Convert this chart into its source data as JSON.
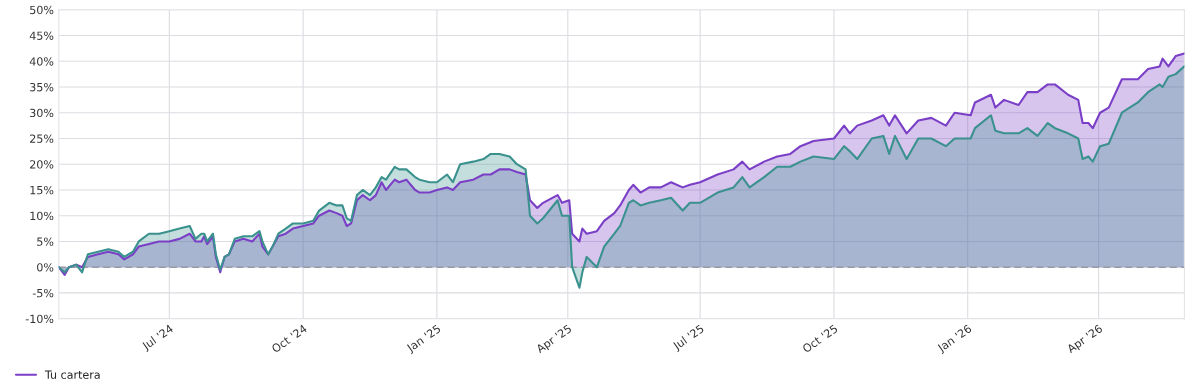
{
  "chart_data": {
    "type": "area",
    "xlim": [
      "2024-04-16",
      "2026-05-30"
    ],
    "ylim": [
      -10,
      50
    ],
    "xticks": [
      {
        "value": "2024-07-01",
        "label": "Jul '24"
      },
      {
        "value": "2024-10-01",
        "label": "Oct '24"
      },
      {
        "value": "2025-01-01",
        "label": "Jan '25"
      },
      {
        "value": "2025-04-01",
        "label": "Apr '25"
      },
      {
        "value": "2025-07-01",
        "label": "Jul '25"
      },
      {
        "value": "2025-10-01",
        "label": "Oct '25"
      },
      {
        "value": "2026-01-01",
        "label": "Jan '26"
      },
      {
        "value": "2026-04-01",
        "label": "Apr '26"
      }
    ],
    "yticks": [
      {
        "value": -10,
        "label": "-10%"
      },
      {
        "value": -5,
        "label": "-5%"
      },
      {
        "value": 0,
        "label": "0%"
      },
      {
        "value": 5,
        "label": "5%"
      },
      {
        "value": 10,
        "label": "10%"
      },
      {
        "value": 15,
        "label": "15%"
      },
      {
        "value": 20,
        "label": "20%"
      },
      {
        "value": 25,
        "label": "25%"
      },
      {
        "value": 30,
        "label": "30%"
      },
      {
        "value": 35,
        "label": "35%"
      },
      {
        "value": 40,
        "label": "40%"
      },
      {
        "value": 45,
        "label": "45%"
      },
      {
        "value": 50,
        "label": "50%"
      }
    ],
    "grid": true,
    "legend": "bottom left",
    "line_style": "solid",
    "ref_lines": [
      {
        "axis": "y",
        "value": 0,
        "color": "#9a9aa6",
        "line_style": "dashed"
      }
    ],
    "series": [
      {
        "name": "Tu cartera",
        "color": "#7a3fc6",
        "x": [
          "2024-04-16",
          "2024-04-20",
          "2024-04-23",
          "2024-04-28",
          "2024-05-02",
          "2024-05-06",
          "2024-05-13",
          "2024-05-20",
          "2024-05-27",
          "2024-05-31",
          "2024-06-06",
          "2024-06-10",
          "2024-06-17",
          "2024-06-24",
          "2024-07-01",
          "2024-07-08",
          "2024-07-15",
          "2024-07-19",
          "2024-07-23",
          "2024-07-25",
          "2024-07-27",
          "2024-07-31",
          "2024-08-02",
          "2024-08-05",
          "2024-08-08",
          "2024-08-11",
          "2024-08-15",
          "2024-08-21",
          "2024-08-27",
          "2024-09-01",
          "2024-09-03",
          "2024-09-07",
          "2024-09-10",
          "2024-09-14",
          "2024-09-19",
          "2024-09-24",
          "2024-10-01",
          "2024-10-08",
          "2024-10-12",
          "2024-10-19",
          "2024-10-24",
          "2024-10-28",
          "2024-10-31",
          "2024-11-03",
          "2024-11-07",
          "2024-11-11",
          "2024-11-16",
          "2024-11-20",
          "2024-11-24",
          "2024-11-27",
          "2024-12-03",
          "2024-12-06",
          "2024-12-11",
          "2024-12-17",
          "2024-12-20",
          "2024-12-27",
          "2025-01-01",
          "2025-01-08",
          "2025-01-12",
          "2025-01-17",
          "2025-01-26",
          "2025-02-02",
          "2025-02-07",
          "2025-02-13",
          "2025-02-20",
          "2025-02-25",
          "2025-03-03",
          "2025-03-06",
          "2025-03-11",
          "2025-03-15",
          "2025-03-25",
          "2025-03-28",
          "2025-04-02",
          "2025-04-04",
          "2025-04-09",
          "2025-04-11",
          "2025-04-14",
          "2025-04-21",
          "2025-04-26",
          "2025-05-03",
          "2025-05-07",
          "2025-05-13",
          "2025-05-16",
          "2025-05-21",
          "2025-05-27",
          "2025-06-04",
          "2025-06-11",
          "2025-06-19",
          "2025-06-24",
          "2025-07-01",
          "2025-07-13",
          "2025-07-24",
          "2025-07-30",
          "2025-08-04",
          "2025-08-14",
          "2025-08-23",
          "2025-09-01",
          "2025-09-08",
          "2025-09-17",
          "2025-10-01",
          "2025-10-08",
          "2025-10-12",
          "2025-10-17",
          "2025-10-27",
          "2025-11-04",
          "2025-11-08",
          "2025-11-12",
          "2025-11-20",
          "2025-11-28",
          "2025-12-07",
          "2025-12-17",
          "2025-12-23",
          "2026-01-03",
          "2026-01-06",
          "2026-01-17",
          "2026-01-20",
          "2026-01-26",
          "2026-02-05",
          "2026-02-11",
          "2026-02-18",
          "2026-02-25",
          "2026-03-02",
          "2026-03-11",
          "2026-03-18",
          "2026-03-21",
          "2026-03-25",
          "2026-03-28",
          "2026-04-02",
          "2026-04-08",
          "2026-04-17",
          "2026-04-28",
          "2026-05-05",
          "2026-05-13",
          "2026-05-15",
          "2026-05-19",
          "2026-05-24",
          "2026-05-30"
        ],
        "values": [
          0,
          -1.5,
          0,
          0.5,
          0,
          2,
          2.5,
          3,
          2.5,
          1.5,
          2.5,
          4,
          4.5,
          5,
          5,
          5.5,
          6.5,
          5,
          5,
          6,
          4.5,
          6,
          2,
          -1,
          2,
          2.5,
          5,
          5.5,
          5,
          6.5,
          4,
          2.5,
          4,
          6,
          6.5,
          7.5,
          8,
          8.5,
          10,
          11,
          10.5,
          10,
          8,
          8.5,
          13,
          14,
          13,
          14,
          16.5,
          15,
          17,
          16.5,
          17,
          15,
          14.5,
          14.5,
          15,
          15.5,
          15,
          16.5,
          17,
          18,
          18,
          19,
          19,
          18.5,
          18,
          13,
          11.5,
          12.5,
          14,
          12.5,
          13,
          6.5,
          5,
          7.5,
          6.5,
          7,
          9,
          10.5,
          12,
          15,
          16,
          14.5,
          15.5,
          15.5,
          16.5,
          15.5,
          16,
          16.5,
          18,
          19,
          20.5,
          19,
          20.5,
          21.5,
          22,
          23.5,
          24.5,
          25,
          27.5,
          26,
          27.5,
          28.5,
          29.5,
          27.5,
          29.5,
          26,
          28.5,
          29,
          27.5,
          30,
          29.5,
          32,
          33.5,
          31,
          32.5,
          31.5,
          34,
          34,
          35.5,
          35.5,
          33.5,
          32.5,
          28,
          28,
          27,
          30,
          31,
          36.5,
          36.5,
          38.5,
          39,
          40.5,
          39,
          41,
          41.5
        ]
      },
      {
        "color": "#3a918d",
        "x": [
          "2024-04-16",
          "2024-04-20",
          "2024-04-23",
          "2024-04-28",
          "2024-05-02",
          "2024-05-06",
          "2024-05-13",
          "2024-05-20",
          "2024-05-27",
          "2024-05-31",
          "2024-06-06",
          "2024-06-10",
          "2024-06-17",
          "2024-06-24",
          "2024-07-01",
          "2024-07-08",
          "2024-07-15",
          "2024-07-19",
          "2024-07-23",
          "2024-07-25",
          "2024-07-27",
          "2024-07-31",
          "2024-08-02",
          "2024-08-05",
          "2024-08-08",
          "2024-08-11",
          "2024-08-15",
          "2024-08-21",
          "2024-08-27",
          "2024-09-01",
          "2024-09-03",
          "2024-09-07",
          "2024-09-10",
          "2024-09-14",
          "2024-09-19",
          "2024-09-24",
          "2024-10-01",
          "2024-10-08",
          "2024-10-12",
          "2024-10-19",
          "2024-10-24",
          "2024-10-28",
          "2024-10-31",
          "2024-11-03",
          "2024-11-07",
          "2024-11-11",
          "2024-11-16",
          "2024-11-20",
          "2024-11-24",
          "2024-11-27",
          "2024-12-03",
          "2024-12-06",
          "2024-12-11",
          "2024-12-17",
          "2024-12-20",
          "2024-12-27",
          "2025-01-01",
          "2025-01-08",
          "2025-01-12",
          "2025-01-17",
          "2025-01-26",
          "2025-02-02",
          "2025-02-07",
          "2025-02-13",
          "2025-02-20",
          "2025-02-25",
          "2025-03-03",
          "2025-03-06",
          "2025-03-11",
          "2025-03-15",
          "2025-03-25",
          "2025-03-28",
          "2025-04-02",
          "2025-04-04",
          "2025-04-09",
          "2025-04-11",
          "2025-04-14",
          "2025-04-21",
          "2025-04-26",
          "2025-05-03",
          "2025-05-07",
          "2025-05-13",
          "2025-05-16",
          "2025-05-21",
          "2025-05-27",
          "2025-06-04",
          "2025-06-11",
          "2025-06-19",
          "2025-06-24",
          "2025-07-01",
          "2025-07-13",
          "2025-07-24",
          "2025-07-30",
          "2025-08-04",
          "2025-08-14",
          "2025-08-23",
          "2025-09-01",
          "2025-09-08",
          "2025-09-17",
          "2025-10-01",
          "2025-10-08",
          "2025-10-12",
          "2025-10-17",
          "2025-10-27",
          "2025-11-04",
          "2025-11-08",
          "2025-11-12",
          "2025-11-20",
          "2025-11-28",
          "2025-12-07",
          "2025-12-17",
          "2025-12-23",
          "2026-01-03",
          "2026-01-06",
          "2026-01-17",
          "2026-01-20",
          "2026-01-26",
          "2026-02-05",
          "2026-02-11",
          "2026-02-18",
          "2026-02-25",
          "2026-03-02",
          "2026-03-11",
          "2026-03-18",
          "2026-03-21",
          "2026-03-25",
          "2026-03-28",
          "2026-04-02",
          "2026-04-08",
          "2026-04-17",
          "2026-04-28",
          "2026-05-05",
          "2026-05-13",
          "2026-05-15",
          "2026-05-19",
          "2026-05-24",
          "2026-05-30"
        ],
        "values": [
          0,
          -1,
          0,
          0.5,
          -1,
          2.5,
          3,
          3.5,
          3,
          2,
          3,
          5,
          6.5,
          6.5,
          7,
          7.5,
          8,
          5.5,
          6.5,
          6.5,
          5,
          6.5,
          2.5,
          -0.5,
          2,
          2.5,
          5.5,
          6,
          6,
          7,
          5,
          2.5,
          4,
          6.5,
          7.5,
          8.5,
          8.5,
          9,
          11,
          12.5,
          12,
          12,
          9.5,
          9,
          14,
          15,
          14,
          15.5,
          17.5,
          17,
          19.5,
          19,
          19,
          17.5,
          17,
          16.5,
          16.5,
          18,
          16.5,
          20,
          20.5,
          21,
          22,
          22,
          21.5,
          20,
          19,
          10,
          8.5,
          9.5,
          13,
          10,
          10,
          0,
          -4,
          -1,
          2,
          0,
          4,
          6.5,
          8,
          12.5,
          13,
          12,
          12.5,
          13,
          13.5,
          11,
          12.5,
          12.5,
          14.5,
          15.5,
          17.5,
          15.5,
          17.5,
          19.5,
          19.5,
          20.5,
          21.5,
          21,
          23.5,
          22.5,
          21,
          25,
          25.5,
          22,
          25.5,
          21,
          25,
          25,
          23.5,
          25,
          25,
          27,
          29.5,
          26.5,
          26,
          26,
          27,
          25.5,
          28,
          27,
          26,
          25,
          21,
          21.5,
          20.5,
          23.5,
          24,
          30,
          32,
          34,
          35.5,
          35,
          37,
          37.5,
          39
        ]
      }
    ]
  }
}
